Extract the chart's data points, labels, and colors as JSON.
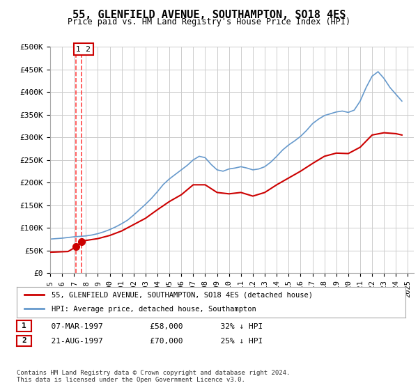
{
  "title": "55, GLENFIELD AVENUE, SOUTHAMPTON, SO18 4ES",
  "subtitle": "Price paid vs. HM Land Registry's House Price Index (HPI)",
  "background_color": "#ffffff",
  "plot_bg_color": "#ffffff",
  "grid_color": "#cccccc",
  "ylim": [
    0,
    500000
  ],
  "yticks": [
    0,
    50000,
    100000,
    150000,
    200000,
    250000,
    300000,
    350000,
    400000,
    450000,
    500000
  ],
  "ytick_labels": [
    "£0",
    "£50K",
    "£100K",
    "£150K",
    "£200K",
    "£250K",
    "£300K",
    "£350K",
    "£400K",
    "£450K",
    "£500K"
  ],
  "xlim_start": 1995.0,
  "xlim_end": 2025.5,
  "xticks": [
    1995,
    1996,
    1997,
    1998,
    1999,
    2000,
    2001,
    2002,
    2003,
    2004,
    2005,
    2006,
    2007,
    2008,
    2009,
    2010,
    2011,
    2012,
    2013,
    2014,
    2015,
    2016,
    2017,
    2018,
    2019,
    2020,
    2021,
    2022,
    2023,
    2024,
    2025
  ],
  "hpi_line_color": "#6699cc",
  "price_line_color": "#cc0000",
  "marker_color": "#cc0000",
  "vline_color": "#ff4444",
  "annotation_box_color": "#cc0000",
  "legend_label_price": "55, GLENFIELD AVENUE, SOUTHAMPTON, SO18 4ES (detached house)",
  "legend_label_hpi": "HPI: Average price, detached house, Southampton",
  "table_rows": [
    {
      "num": "1",
      "date": "07-MAR-1997",
      "price": "£58,000",
      "hpi": "32% ↓ HPI"
    },
    {
      "num": "2",
      "date": "21-AUG-1997",
      "price": "£70,000",
      "hpi": "25% ↓ HPI"
    }
  ],
  "footer": "Contains HM Land Registry data © Crown copyright and database right 2024.\nThis data is licensed under the Open Government Licence v3.0.",
  "sale_years": [
    1997.18,
    1997.64
  ],
  "sale_prices": [
    58000,
    70000
  ],
  "hpi_years": [
    1995.0,
    1995.5,
    1996.0,
    1996.5,
    1997.0,
    1997.5,
    1998.0,
    1998.5,
    1999.0,
    1999.5,
    2000.0,
    2000.5,
    2001.0,
    2001.5,
    2002.0,
    2002.5,
    2003.0,
    2003.5,
    2004.0,
    2004.5,
    2005.0,
    2005.5,
    2006.0,
    2006.5,
    2007.0,
    2007.5,
    2008.0,
    2008.5,
    2009.0,
    2009.5,
    2010.0,
    2010.5,
    2011.0,
    2011.5,
    2012.0,
    2012.5,
    2013.0,
    2013.5,
    2014.0,
    2014.5,
    2015.0,
    2015.5,
    2016.0,
    2016.5,
    2017.0,
    2017.5,
    2018.0,
    2018.5,
    2019.0,
    2019.5,
    2020.0,
    2020.5,
    2021.0,
    2021.5,
    2022.0,
    2022.5,
    2023.0,
    2023.5,
    2024.0,
    2024.5
  ],
  "hpi_values": [
    75000,
    76000,
    77000,
    78500,
    80000,
    81000,
    82000,
    84000,
    87000,
    91000,
    96000,
    102000,
    109000,
    117000,
    128000,
    140000,
    152000,
    165000,
    180000,
    196000,
    208000,
    218000,
    228000,
    238000,
    250000,
    258000,
    255000,
    240000,
    228000,
    225000,
    230000,
    232000,
    235000,
    232000,
    228000,
    230000,
    235000,
    245000,
    258000,
    272000,
    283000,
    292000,
    302000,
    315000,
    330000,
    340000,
    348000,
    352000,
    356000,
    358000,
    355000,
    360000,
    380000,
    410000,
    435000,
    445000,
    430000,
    410000,
    395000,
    380000
  ],
  "price_years": [
    1995.0,
    1995.5,
    1996.0,
    1996.5,
    1997.18,
    1997.64,
    1998.0,
    1999.0,
    2000.0,
    2001.0,
    2002.0,
    2003.0,
    2004.0,
    2005.0,
    2006.0,
    2007.0,
    2008.0,
    2009.0,
    2010.0,
    2011.0,
    2012.0,
    2013.0,
    2014.0,
    2015.0,
    2016.0,
    2017.0,
    2018.0,
    2019.0,
    2020.0,
    2021.0,
    2022.0,
    2023.0,
    2024.0,
    2024.5
  ],
  "price_values": [
    46000,
    46500,
    47000,
    47500,
    58000,
    70000,
    72000,
    76000,
    83000,
    93000,
    107000,
    121000,
    140000,
    158000,
    173000,
    195000,
    195000,
    178000,
    175000,
    178000,
    170000,
    178000,
    195000,
    210000,
    225000,
    242000,
    258000,
    265000,
    264000,
    278000,
    305000,
    310000,
    308000,
    305000
  ]
}
